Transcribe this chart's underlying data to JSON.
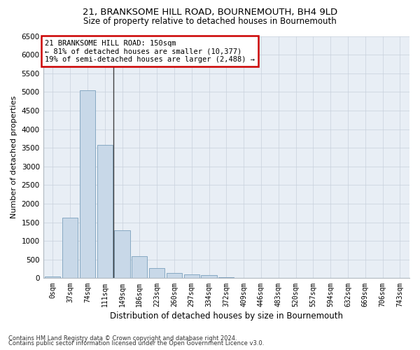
{
  "title_line1": "21, BRANKSOME HILL ROAD, BOURNEMOUTH, BH4 9LD",
  "title_line2": "Size of property relative to detached houses in Bournemouth",
  "xlabel": "Distribution of detached houses by size in Bournemouth",
  "ylabel": "Number of detached properties",
  "footnote1": "Contains HM Land Registry data © Crown copyright and database right 2024.",
  "footnote2": "Contains public sector information licensed under the Open Government Licence v3.0.",
  "annotation_line1": "21 BRANKSOME HILL ROAD: 150sqm",
  "annotation_line2": "← 81% of detached houses are smaller (10,377)",
  "annotation_line3": "19% of semi-detached houses are larger (2,488) →",
  "bar_color": "#c8d8e8",
  "bar_edge_color": "#7aa0bc",
  "vline_color": "#404040",
  "annotation_box_color": "#ffffff",
  "annotation_box_edge": "#cc0000",
  "background_color": "#ffffff",
  "grid_color": "#c8d0dc",
  "plot_bg_color": "#e8eef5",
  "categories": [
    "0sqm",
    "37sqm",
    "74sqm",
    "111sqm",
    "149sqm",
    "186sqm",
    "223sqm",
    "260sqm",
    "297sqm",
    "334sqm",
    "372sqm",
    "409sqm",
    "446sqm",
    "483sqm",
    "520sqm",
    "557sqm",
    "594sqm",
    "632sqm",
    "669sqm",
    "706sqm",
    "743sqm"
  ],
  "values": [
    55,
    1620,
    5050,
    3580,
    1290,
    590,
    270,
    135,
    110,
    75,
    28,
    10,
    5,
    2,
    1,
    0,
    0,
    0,
    0,
    0,
    0
  ],
  "vline_bin_index": 4,
  "ylim": [
    0,
    6500
  ],
  "yticks": [
    0,
    500,
    1000,
    1500,
    2000,
    2500,
    3000,
    3500,
    4000,
    4500,
    5000,
    5500,
    6000,
    6500
  ],
  "title_fontsize": 9.5,
  "subtitle_fontsize": 8.5,
  "ylabel_fontsize": 8,
  "xlabel_fontsize": 8.5,
  "tick_fontsize": 7,
  "annotation_fontsize": 7.5,
  "footnote_fontsize": 6
}
